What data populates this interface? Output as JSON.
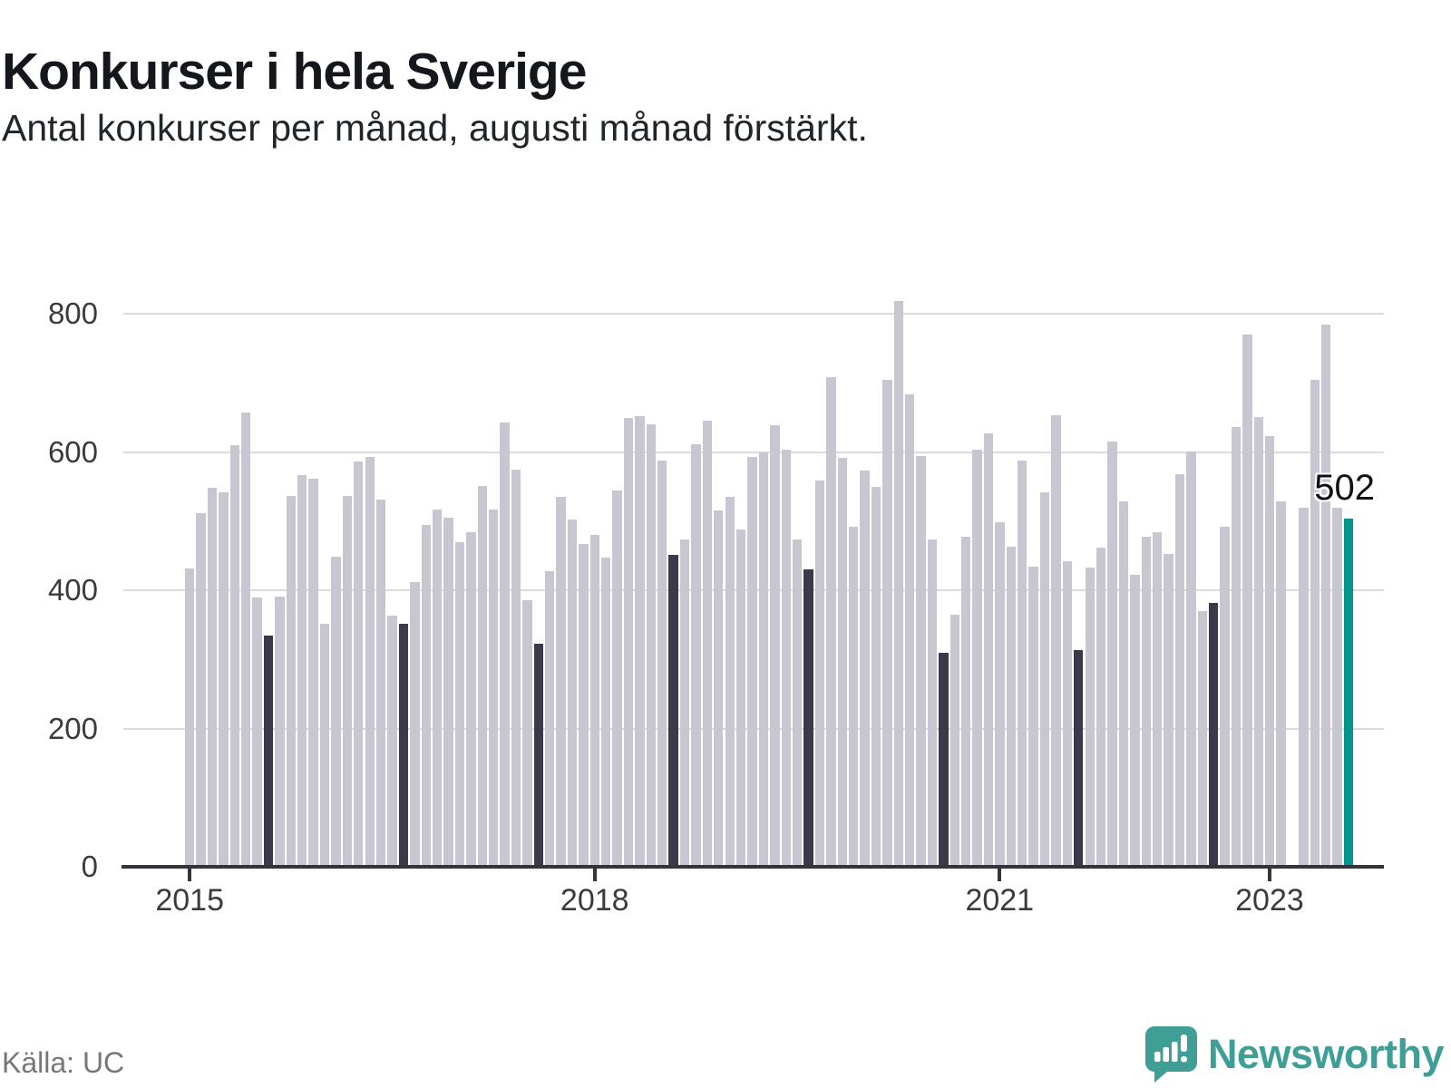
{
  "title": "Konkurser i hela Sverige",
  "subtitle": "Antal konkurser per månad, augusti månad förstärkt.",
  "source": "Källa: UC",
  "brand": {
    "name": "Newsworthy",
    "icon": "newsworthy-bar-chart-bubble-icon"
  },
  "annotation": {
    "label": "502",
    "points_to": "2023-08"
  },
  "palette": {
    "bar_normal": "#c8c6d0",
    "bar_august": "#3b3a4b",
    "bar_latest": "#00968b",
    "gridline": "#dadae0",
    "axis": "#35343e",
    "title_text": "#14171b",
    "subtitle_text": "#21262b",
    "tick_text": "#3b3b3b",
    "source_text": "#777777",
    "brand_teal": "#3f9e96"
  },
  "chart_data": {
    "type": "bar",
    "title": "Konkurser i hela Sverige",
    "xlabel": "",
    "ylabel": "",
    "unit": "konkurser per månad",
    "ylim": [
      0,
      860
    ],
    "yticks": [
      0,
      200,
      400,
      600,
      800
    ],
    "grid": "horizontal-only",
    "legend": "none",
    "xticks": [
      {
        "label": "2015",
        "month_index": 0
      },
      {
        "label": "2018",
        "month_index": 36
      },
      {
        "label": "2021",
        "month_index": 72
      },
      {
        "label": "2023",
        "month_index": 96
      }
    ],
    "highlight_rule": "August bars dark; August 2023 (latest) teal with data label 502; March 2023 missing (no bar)",
    "point_format": [
      "month",
      "value",
      "style(optional: august|latest, default normal)"
    ],
    "series": [
      {
        "name": "Antal konkurser",
        "points": [
          [
            "2015-01",
            430
          ],
          [
            "2015-02",
            510
          ],
          [
            "2015-03",
            547
          ],
          [
            "2015-04",
            541
          ],
          [
            "2015-05",
            609
          ],
          [
            "2015-06",
            656
          ],
          [
            "2015-07",
            388
          ],
          [
            "2015-08",
            333,
            "august"
          ],
          [
            "2015-09",
            390
          ],
          [
            "2015-10",
            535
          ],
          [
            "2015-11",
            565
          ],
          [
            "2015-12",
            560
          ],
          [
            "2016-01",
            350
          ],
          [
            "2016-02",
            447
          ],
          [
            "2016-03",
            535
          ],
          [
            "2016-04",
            585
          ],
          [
            "2016-05",
            592
          ],
          [
            "2016-06",
            530
          ],
          [
            "2016-07",
            362
          ],
          [
            "2016-08",
            351,
            "august"
          ],
          [
            "2016-09",
            411
          ],
          [
            "2016-10",
            494
          ],
          [
            "2016-11",
            516
          ],
          [
            "2016-12",
            504
          ],
          [
            "2017-01",
            468
          ],
          [
            "2017-02",
            483
          ],
          [
            "2017-03",
            550
          ],
          [
            "2017-04",
            516
          ],
          [
            "2017-05",
            642
          ],
          [
            "2017-06",
            573
          ],
          [
            "2017-07",
            384
          ],
          [
            "2017-08",
            322,
            "august"
          ],
          [
            "2017-09",
            426
          ],
          [
            "2017-10",
            534
          ],
          [
            "2017-11",
            501
          ],
          [
            "2017-12",
            466
          ],
          [
            "2018-01",
            479
          ],
          [
            "2018-02",
            446
          ],
          [
            "2018-03",
            543
          ],
          [
            "2018-04",
            648
          ],
          [
            "2018-05",
            651
          ],
          [
            "2018-06",
            639
          ],
          [
            "2018-07",
            587
          ],
          [
            "2018-08",
            450,
            "august"
          ],
          [
            "2018-09",
            473
          ],
          [
            "2018-10",
            610
          ],
          [
            "2018-11",
            644
          ],
          [
            "2018-12",
            515
          ],
          [
            "2019-01",
            534
          ],
          [
            "2019-02",
            487
          ],
          [
            "2019-03",
            592
          ],
          [
            "2019-04",
            598
          ],
          [
            "2019-05",
            638
          ],
          [
            "2019-06",
            603
          ],
          [
            "2019-07",
            472
          ],
          [
            "2019-08",
            429,
            "august"
          ],
          [
            "2019-09",
            558
          ],
          [
            "2019-10",
            708
          ],
          [
            "2019-11",
            590
          ],
          [
            "2019-12",
            491
          ],
          [
            "2020-01",
            572
          ],
          [
            "2020-02",
            548
          ],
          [
            "2020-03",
            703
          ],
          [
            "2020-04",
            818
          ],
          [
            "2020-05",
            683
          ],
          [
            "2020-06",
            593
          ],
          [
            "2020-07",
            472
          ],
          [
            "2020-08",
            308,
            "august"
          ],
          [
            "2020-09",
            363
          ],
          [
            "2020-10",
            476
          ],
          [
            "2020-11",
            602
          ],
          [
            "2020-12",
            626
          ],
          [
            "2021-01",
            497
          ],
          [
            "2021-02",
            462
          ],
          [
            "2021-03",
            586
          ],
          [
            "2021-04",
            433
          ],
          [
            "2021-05",
            541
          ],
          [
            "2021-06",
            652
          ],
          [
            "2021-07",
            441
          ],
          [
            "2021-08",
            312,
            "august"
          ],
          [
            "2021-09",
            432
          ],
          [
            "2021-10",
            460
          ],
          [
            "2021-11",
            614
          ],
          [
            "2021-12",
            527
          ],
          [
            "2022-01",
            421
          ],
          [
            "2022-02",
            476
          ],
          [
            "2022-03",
            483
          ],
          [
            "2022-04",
            451
          ],
          [
            "2022-05",
            567
          ],
          [
            "2022-06",
            600
          ],
          [
            "2022-07",
            369
          ],
          [
            "2022-08",
            381,
            "august"
          ],
          [
            "2022-09",
            491
          ],
          [
            "2022-10",
            635
          ],
          [
            "2022-11",
            769
          ],
          [
            "2022-12",
            650
          ],
          [
            "2023-01",
            622
          ],
          [
            "2023-02",
            528
          ],
          [
            "2023-03",
            null
          ],
          [
            "2023-04",
            519
          ],
          [
            "2023-05",
            703
          ],
          [
            "2023-06",
            783
          ],
          [
            "2023-07",
            519
          ],
          [
            "2023-08",
            502,
            "latest"
          ]
        ]
      }
    ]
  }
}
